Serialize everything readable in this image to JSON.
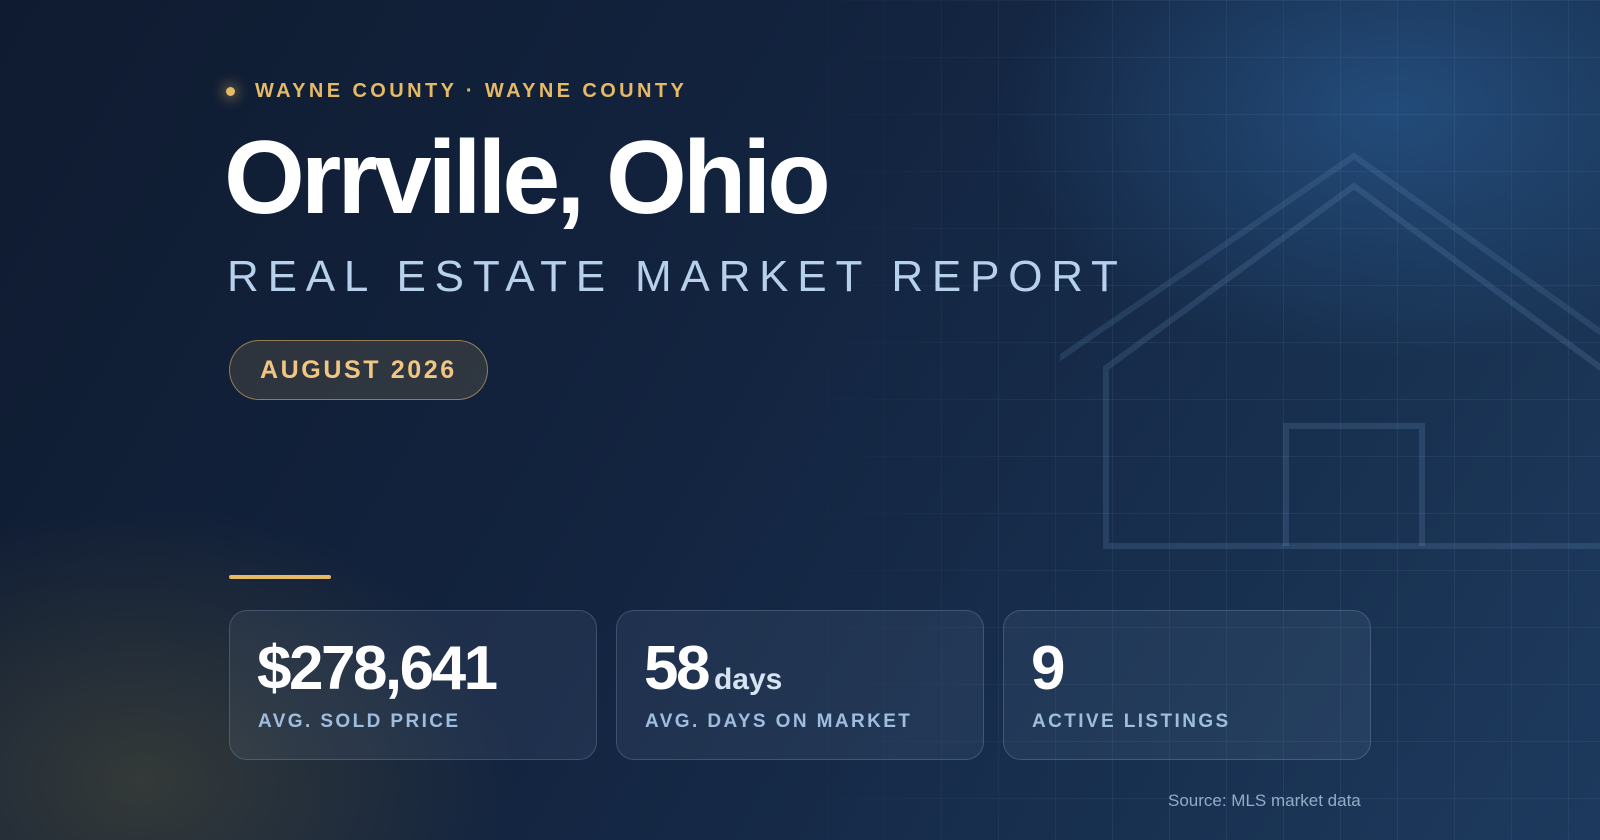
{
  "header": {
    "eyebrow": "WAYNE COUNTY · WAYNE COUNTY",
    "title": "Orrville, Ohio",
    "subtitle": "REAL ESTATE MARKET REPORT",
    "period": "AUGUST 2026"
  },
  "stats": [
    {
      "value": "$278,641",
      "unit": "",
      "label": "AVG. SOLD PRICE"
    },
    {
      "value": "58",
      "unit": "days",
      "label": "AVG. DAYS ON MARKET"
    },
    {
      "value": "9",
      "unit": "",
      "label": "ACTIVE LISTINGS"
    }
  ],
  "footer": {
    "source": "Source: MLS market data"
  },
  "colors": {
    "accent": "#e6b964",
    "background": "#132440",
    "subtitle": "#b7d0ec"
  },
  "icons": {
    "decoration": "house-outline-icon",
    "eyebrow_marker": "dot-icon"
  }
}
